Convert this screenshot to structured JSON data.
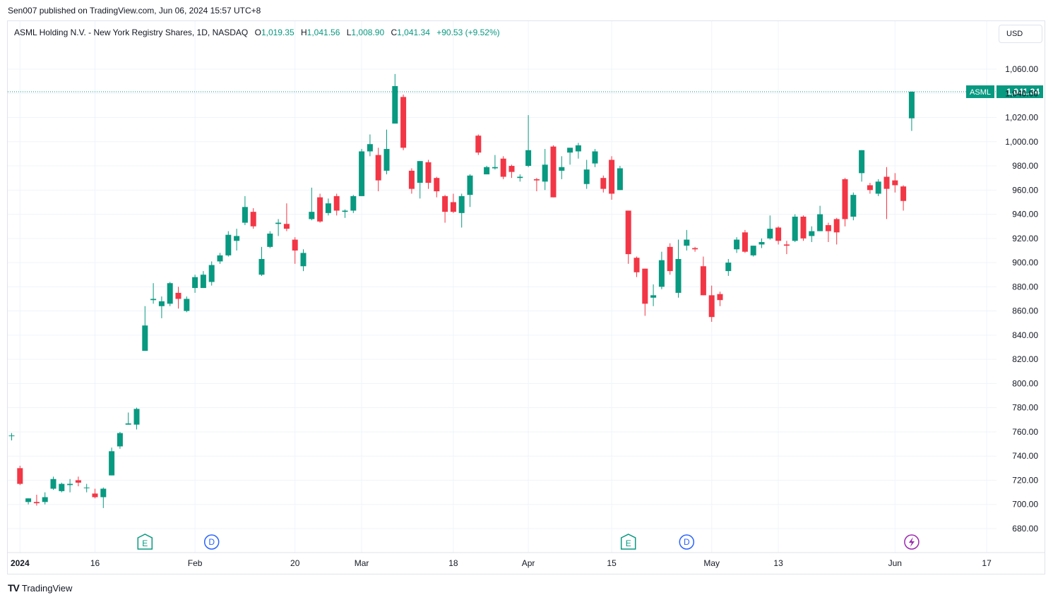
{
  "published": "Sen007 published on TradingView.com, Jun 06, 2024 15:57 UTC+8",
  "legend": {
    "title": "ASML Holding N.V. - New York Registry Shares, 1D, NASDAQ",
    "o_label": "O",
    "o": "1,019.35",
    "h_label": "H",
    "h": "1,041.56",
    "l_label": "L",
    "l": "1,008.90",
    "c_label": "C",
    "c": "1,041.34",
    "change": "+90.53 (+9.52%)"
  },
  "currency": "USD",
  "footer": {
    "logo": "TV",
    "brand": "TradingView"
  },
  "colors": {
    "up": "#089981",
    "down": "#f23645",
    "grid": "#f0f3fa",
    "text": "#131722"
  },
  "chart_data": {
    "type": "candlestick",
    "symbol": "ASML",
    "last_price_label": "1,041.34",
    "y_ticks": [
      680,
      700,
      720,
      740,
      760,
      780,
      800,
      820,
      840,
      860,
      880,
      900,
      920,
      940,
      960,
      980,
      1000,
      1020,
      1040,
      1060
    ],
    "y_tick_labels": [
      "680.00",
      "700.00",
      "720.00",
      "740.00",
      "760.00",
      "780.00",
      "800.00",
      "820.00",
      "840.00",
      "860.00",
      "880.00",
      "900.00",
      "920.00",
      "940.00",
      "960.00",
      "980.00",
      "1,000.00",
      "1,020.00",
      "1,040.00",
      "1,060.00"
    ],
    "x_ticks": [
      {
        "label": "2024",
        "index": 1,
        "bold": true
      },
      {
        "label": "16",
        "index": 10
      },
      {
        "label": "Feb",
        "index": 22
      },
      {
        "label": "20",
        "index": 34
      },
      {
        "label": "Mar",
        "index": 42
      },
      {
        "label": "18",
        "index": 53
      },
      {
        "label": "Apr",
        "index": 62
      },
      {
        "label": "15",
        "index": 72
      },
      {
        "label": "May",
        "index": 84
      },
      {
        "label": "13",
        "index": 92
      },
      {
        "label": "Jun",
        "index": 106
      },
      {
        "label": "17",
        "index": 117
      }
    ],
    "events": [
      {
        "type": "E",
        "index": 16
      },
      {
        "type": "D",
        "index": 24
      },
      {
        "type": "E",
        "index": 74
      },
      {
        "type": "D",
        "index": 81
      },
      {
        "type": "flash",
        "index": 108
      }
    ],
    "candles": [
      {
        "o": 757,
        "h": 759,
        "l": 753,
        "c": 757
      },
      {
        "o": 730,
        "h": 732,
        "l": 716,
        "c": 717
      },
      {
        "o": 702,
        "h": 705,
        "l": 700,
        "c": 705
      },
      {
        "o": 702,
        "h": 708,
        "l": 699,
        "c": 701
      },
      {
        "o": 702,
        "h": 710,
        "l": 700,
        "c": 706
      },
      {
        "o": 713,
        "h": 723,
        "l": 712,
        "c": 721
      },
      {
        "o": 711,
        "h": 718,
        "l": 710,
        "c": 717
      },
      {
        "o": 716,
        "h": 721,
        "l": 710,
        "c": 717
      },
      {
        "o": 720,
        "h": 723,
        "l": 715,
        "c": 718
      },
      {
        "o": 714,
        "h": 717,
        "l": 710,
        "c": 714
      },
      {
        "o": 709,
        "h": 713,
        "l": 705,
        "c": 706
      },
      {
        "o": 706,
        "h": 714,
        "l": 697,
        "c": 713
      },
      {
        "o": 724,
        "h": 747,
        "l": 724,
        "c": 744
      },
      {
        "o": 748,
        "h": 760,
        "l": 746,
        "c": 759
      },
      {
        "o": 766,
        "h": 776,
        "l": 766,
        "c": 767
      },
      {
        "o": 766,
        "h": 780,
        "l": 762,
        "c": 779
      },
      {
        "o": 827,
        "h": 864,
        "l": 827,
        "c": 848
      },
      {
        "o": 869,
        "h": 883,
        "l": 866,
        "c": 870
      },
      {
        "o": 864,
        "h": 872,
        "l": 854,
        "c": 868
      },
      {
        "o": 866,
        "h": 884,
        "l": 864,
        "c": 883
      },
      {
        "o": 875,
        "h": 880,
        "l": 862,
        "c": 870
      },
      {
        "o": 860,
        "h": 872,
        "l": 859,
        "c": 870
      },
      {
        "o": 879,
        "h": 890,
        "l": 875,
        "c": 888
      },
      {
        "o": 879,
        "h": 893,
        "l": 879,
        "c": 890
      },
      {
        "o": 884,
        "h": 901,
        "l": 881,
        "c": 898
      },
      {
        "o": 901,
        "h": 908,
        "l": 899,
        "c": 906
      },
      {
        "o": 906,
        "h": 926,
        "l": 905,
        "c": 923
      },
      {
        "o": 918,
        "h": 928,
        "l": 910,
        "c": 922
      },
      {
        "o": 933,
        "h": 955,
        "l": 931,
        "c": 946
      },
      {
        "o": 942,
        "h": 945,
        "l": 928,
        "c": 930
      },
      {
        "o": 890,
        "h": 913,
        "l": 889,
        "c": 903
      },
      {
        "o": 913,
        "h": 926,
        "l": 912,
        "c": 924
      },
      {
        "o": 932,
        "h": 936,
        "l": 922,
        "c": 933
      },
      {
        "o": 932,
        "h": 949,
        "l": 926,
        "c": 928
      },
      {
        "o": 919,
        "h": 921,
        "l": 899,
        "c": 910
      },
      {
        "o": 897,
        "h": 911,
        "l": 893,
        "c": 908
      },
      {
        "o": 936,
        "h": 962,
        "l": 935,
        "c": 942
      },
      {
        "o": 954,
        "h": 957,
        "l": 933,
        "c": 934
      },
      {
        "o": 941,
        "h": 953,
        "l": 939,
        "c": 949
      },
      {
        "o": 955,
        "h": 957,
        "l": 939,
        "c": 943
      },
      {
        "o": 942,
        "h": 944,
        "l": 937,
        "c": 943
      },
      {
        "o": 943,
        "h": 956,
        "l": 941,
        "c": 955
      },
      {
        "o": 955,
        "h": 994,
        "l": 955,
        "c": 992
      },
      {
        "o": 992,
        "h": 1006,
        "l": 988,
        "c": 998
      },
      {
        "o": 989,
        "h": 995,
        "l": 959,
        "c": 968
      },
      {
        "o": 976,
        "h": 1010,
        "l": 973,
        "c": 994
      },
      {
        "o": 1015,
        "h": 1056,
        "l": 1015,
        "c": 1046
      },
      {
        "o": 1037,
        "h": 1039,
        "l": 993,
        "c": 995
      },
      {
        "o": 976,
        "h": 978,
        "l": 957,
        "c": 961
      },
      {
        "o": 966,
        "h": 984,
        "l": 953,
        "c": 984
      },
      {
        "o": 983,
        "h": 985,
        "l": 961,
        "c": 966
      },
      {
        "o": 970,
        "h": 971,
        "l": 954,
        "c": 959
      },
      {
        "o": 955,
        "h": 956,
        "l": 933,
        "c": 942
      },
      {
        "o": 950,
        "h": 957,
        "l": 941,
        "c": 942
      },
      {
        "o": 941,
        "h": 957,
        "l": 929,
        "c": 955
      },
      {
        "o": 956,
        "h": 973,
        "l": 946,
        "c": 972
      },
      {
        "o": 1005,
        "h": 1006,
        "l": 989,
        "c": 991
      },
      {
        "o": 973,
        "h": 980,
        "l": 973,
        "c": 979
      },
      {
        "o": 978,
        "h": 989,
        "l": 977,
        "c": 979
      },
      {
        "o": 986,
        "h": 988,
        "l": 969,
        "c": 971
      },
      {
        "o": 980,
        "h": 981,
        "l": 970,
        "c": 975
      },
      {
        "o": 970,
        "h": 973,
        "l": 967,
        "c": 971
      },
      {
        "o": 980,
        "h": 1022,
        "l": 979,
        "c": 993
      },
      {
        "o": 969,
        "h": 970,
        "l": 959,
        "c": 968
      },
      {
        "o": 967,
        "h": 994,
        "l": 960,
        "c": 981
      },
      {
        "o": 996,
        "h": 997,
        "l": 954,
        "c": 954
      },
      {
        "o": 976,
        "h": 988,
        "l": 969,
        "c": 979
      },
      {
        "o": 991,
        "h": 995,
        "l": 981,
        "c": 995
      },
      {
        "o": 992,
        "h": 999,
        "l": 986,
        "c": 997
      },
      {
        "o": 965,
        "h": 985,
        "l": 961,
        "c": 977
      },
      {
        "o": 982,
        "h": 994,
        "l": 979,
        "c": 992
      },
      {
        "o": 970,
        "h": 972,
        "l": 958,
        "c": 961
      },
      {
        "o": 985,
        "h": 988,
        "l": 952,
        "c": 957
      },
      {
        "o": 960,
        "h": 980,
        "l": 960,
        "c": 978
      },
      {
        "o": 943,
        "h": 943,
        "l": 899,
        "c": 907
      },
      {
        "o": 904,
        "h": 905,
        "l": 888,
        "c": 892
      },
      {
        "o": 895,
        "h": 895,
        "l": 856,
        "c": 866
      },
      {
        "o": 871,
        "h": 882,
        "l": 864,
        "c": 873
      },
      {
        "o": 880,
        "h": 909,
        "l": 878,
        "c": 902
      },
      {
        "o": 913,
        "h": 916,
        "l": 890,
        "c": 893
      },
      {
        "o": 875,
        "h": 919,
        "l": 871,
        "c": 903
      },
      {
        "o": 914,
        "h": 927,
        "l": 910,
        "c": 919
      },
      {
        "o": 912,
        "h": 913,
        "l": 909,
        "c": 911
      },
      {
        "o": 897,
        "h": 905,
        "l": 873,
        "c": 873
      },
      {
        "o": 873,
        "h": 881,
        "l": 851,
        "c": 855
      },
      {
        "o": 874,
        "h": 876,
        "l": 864,
        "c": 869
      },
      {
        "o": 893,
        "h": 903,
        "l": 889,
        "c": 900
      },
      {
        "o": 911,
        "h": 921,
        "l": 908,
        "c": 919
      },
      {
        "o": 925,
        "h": 927,
        "l": 908,
        "c": 909
      },
      {
        "o": 906,
        "h": 914,
        "l": 905,
        "c": 914
      },
      {
        "o": 915,
        "h": 920,
        "l": 912,
        "c": 917
      },
      {
        "o": 920,
        "h": 939,
        "l": 919,
        "c": 928
      },
      {
        "o": 929,
        "h": 930,
        "l": 915,
        "c": 918
      },
      {
        "o": 915,
        "h": 918,
        "l": 907,
        "c": 914
      },
      {
        "o": 918,
        "h": 940,
        "l": 917,
        "c": 938
      },
      {
        "o": 938,
        "h": 939,
        "l": 918,
        "c": 920
      },
      {
        "o": 922,
        "h": 930,
        "l": 917,
        "c": 926
      },
      {
        "o": 926,
        "h": 947,
        "l": 926,
        "c": 940
      },
      {
        "o": 931,
        "h": 933,
        "l": 917,
        "c": 926
      },
      {
        "o": 936,
        "h": 937,
        "l": 915,
        "c": 925
      },
      {
        "o": 969,
        "h": 970,
        "l": 930,
        "c": 936
      },
      {
        "o": 938,
        "h": 958,
        "l": 935,
        "c": 956
      },
      {
        "o": 974,
        "h": 993,
        "l": 967,
        "c": 993
      },
      {
        "o": 964,
        "h": 966,
        "l": 957,
        "c": 960
      },
      {
        "o": 957,
        "h": 969,
        "l": 955,
        "c": 967
      },
      {
        "o": 971,
        "h": 979,
        "l": 936,
        "c": 961
      },
      {
        "o": 968,
        "h": 974,
        "l": 958,
        "c": 964
      },
      {
        "o": 963,
        "h": 964,
        "l": 943,
        "c": 951
      },
      {
        "o": 1019.35,
        "h": 1041.56,
        "l": 1008.9,
        "c": 1041.34
      }
    ]
  }
}
